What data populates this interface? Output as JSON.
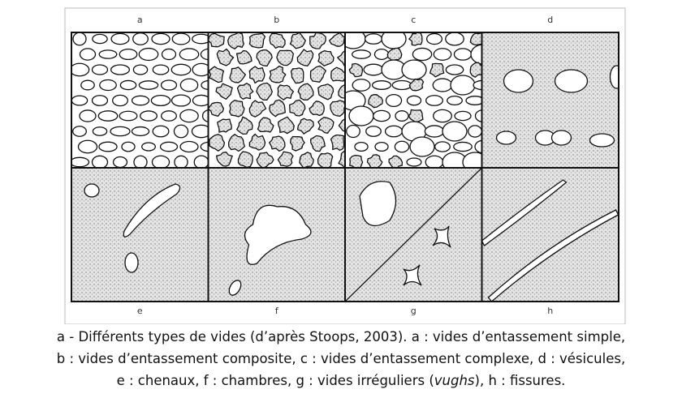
{
  "panels": [
    {
      "label": "a"
    },
    {
      "label": "b"
    },
    {
      "label": "c"
    },
    {
      "label": "d"
    },
    {
      "label": "e"
    },
    {
      "label": "f"
    },
    {
      "label": "g"
    },
    {
      "label": "h"
    }
  ],
  "caption": {
    "line1": "a - Différents types de vides (d’après Stoops, 2003). a : vides d’entassement simple,",
    "line2": "b : vides d’entassement composite, c : vides d’entassement complexe, d : vésicules,",
    "line3": {
      "before": "e : chenaux, f : chambres, g : vides irréguliers (",
      "italic": "vughs",
      "after": "), h : fissures."
    }
  }
}
